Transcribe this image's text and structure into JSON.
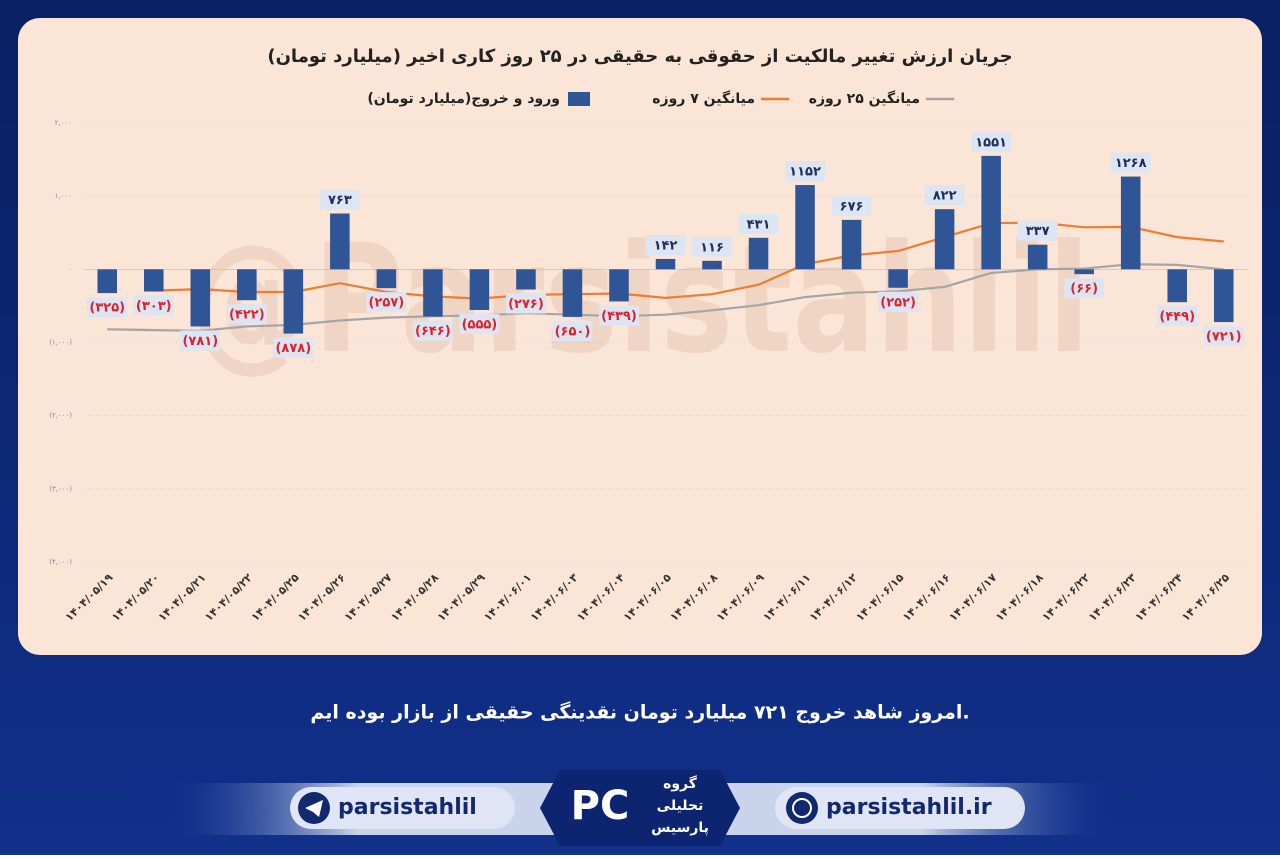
{
  "chart_data": {
    "type": "bar",
    "title": "جریان ارزش تغییر مالکیت از حقوقی به حقیقی در ۲۵ روز کاری اخیر (میلیارد تومان)",
    "watermark": "@Parsistahlil",
    "categories": [
      "۱۴۰۴/۰۵/۱۹",
      "۱۴۰۴/۰۵/۲۰",
      "۱۴۰۴/۰۵/۲۱",
      "۱۴۰۴/۰۵/۲۲",
      "۱۴۰۴/۰۵/۲۵",
      "۱۴۰۴/۰۵/۲۶",
      "۱۴۰۴/۰۵/۲۷",
      "۱۴۰۴/۰۵/۲۸",
      "۱۴۰۴/۰۵/۲۹",
      "۱۴۰۴/۰۶/۰۱",
      "۱۴۰۴/۰۶/۰۳",
      "۱۴۰۴/۰۶/۰۴",
      "۱۴۰۴/۰۶/۰۵",
      "۱۴۰۴/۰۶/۰۸",
      "۱۴۰۴/۰۶/۰۹",
      "۱۴۰۴/۰۶/۱۱",
      "۱۴۰۴/۰۶/۱۲",
      "۱۴۰۴/۰۶/۱۵",
      "۱۴۰۴/۰۶/۱۶",
      "۱۴۰۴/۰۶/۱۷",
      "۱۴۰۴/۰۶/۱۸",
      "۱۴۰۴/۰۶/۲۲",
      "۱۴۰۴/۰۶/۲۳",
      "۱۴۰۴/۰۶/۲۴",
      "۱۴۰۴/۰۶/۲۵"
    ],
    "series": [
      {
        "name": "ورود و خروج(میلیارد تومان)",
        "type": "bar",
        "color": "#2f5597",
        "values": [
          -325,
          -303,
          -781,
          -422,
          -878,
          763,
          -257,
          -646,
          -555,
          -276,
          -650,
          -439,
          142,
          116,
          431,
          1152,
          676,
          -252,
          822,
          1551,
          337,
          -66,
          1268,
          -449,
          -721
        ],
        "value_labels": [
          "(۳۲۵)",
          "(۳۰۳)",
          "(۷۸۱)",
          "(۴۲۲)",
          "(۸۷۸)",
          "۷۶۳",
          "(۲۵۷)",
          "(۶۴۶)",
          "(۵۵۵)",
          "(۲۷۶)",
          "(۶۵۰)",
          "(۴۳۹)",
          "۱۴۲",
          "۱۱۶",
          "۴۳۱",
          "۱۱۵۲",
          "۶۷۶",
          "(۲۵۲)",
          "۸۲۲",
          "۱۵۵۱",
          "۳۳۷",
          "(۶۶)",
          "۱۲۶۸",
          "(۴۴۹)",
          "(۷۲۱)"
        ]
      },
      {
        "name": "میانگین ۷ روزه",
        "type": "line",
        "color": "#ed7d31",
        "values": [
          null,
          -290,
          -270,
          -310,
          -310,
          -190,
          -310,
          -370,
          -400,
          -350,
          -340,
          -330,
          -390,
          -340,
          -210,
          70,
          190,
          250,
          440,
          630,
          640,
          575,
          580,
          440,
          380
        ]
      },
      {
        "name": "میانگین ۲۵ روزه",
        "type": "line",
        "color": "#a5a5a5",
        "values": [
          -820,
          -830,
          -840,
          -780,
          -760,
          -700,
          -660,
          -640,
          -630,
          -600,
          -620,
          -640,
          -620,
          -560,
          -490,
          -380,
          -320,
          -300,
          -240,
          -50,
          0,
          10,
          70,
          60,
          0
        ]
      }
    ],
    "ylim": [
      -4000,
      2000
    ],
    "yticks": [
      {
        "value": 2000,
        "label": "۲,۰۰۰"
      },
      {
        "value": 1000,
        "label": "۱,۰۰۰"
      },
      {
        "value": 0,
        "label": "۰"
      },
      {
        "value": -1000,
        "label": "(۱,۰۰۰)"
      },
      {
        "value": -2000,
        "label": "(۲,۰۰۰)"
      },
      {
        "value": -3000,
        "label": "(۳,۰۰۰)"
      },
      {
        "value": -4000,
        "label": "(۴,۰۰۰)"
      }
    ]
  },
  "footer": {
    "caption": "امروز شاهد خروج ۷۲۱ میلیارد تومان نقدینگی حقیقی از بازار بوده ایم.",
    "telegram": "parsistahlil",
    "website": "parsistahlil.ir",
    "logo": [
      "گروه",
      "تحلیلی",
      "پارسیس"
    ]
  }
}
